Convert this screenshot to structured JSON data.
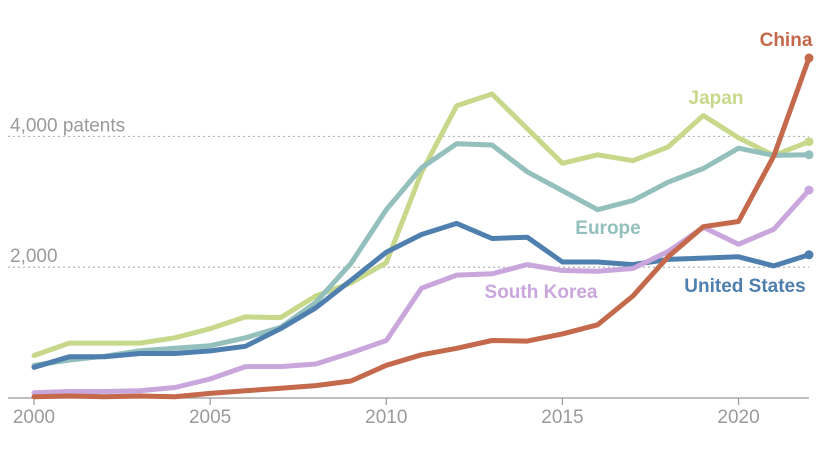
{
  "chart_data": {
    "type": "line",
    "title": "",
    "xlabel": "",
    "ylabel": "",
    "xlim": [
      2000,
      2022
    ],
    "ylim": [
      0,
      5200
    ],
    "x_ticks": [
      2000,
      2005,
      2010,
      2015,
      2020
    ],
    "x_tick_labels": [
      "2000",
      "2005",
      "2010",
      "2015",
      "2020"
    ],
    "y_ticks": [
      2000,
      4000
    ],
    "y_tick_labels": [
      "2,000",
      "4,000 patents"
    ],
    "grid": true,
    "x": [
      2000,
      2001,
      2002,
      2003,
      2004,
      2005,
      2006,
      2007,
      2008,
      2009,
      2010,
      2011,
      2012,
      2013,
      2014,
      2015,
      2016,
      2017,
      2018,
      2019,
      2020,
      2021,
      2022
    ],
    "series": [
      {
        "name": "Japan",
        "color": "#c7d88a",
        "values": [
          650,
          840,
          840,
          840,
          920,
          1060,
          1240,
          1230,
          1560,
          1760,
          2070,
          3450,
          4470,
          4650,
          4120,
          3590,
          3720,
          3630,
          3840,
          4320,
          3980,
          3710,
          3920
        ],
        "end_marker": true
      },
      {
        "name": "Europe",
        "color": "#93bfbc",
        "values": [
          500,
          580,
          640,
          720,
          760,
          800,
          920,
          1080,
          1460,
          2060,
          2880,
          3520,
          3890,
          3870,
          3460,
          3170,
          2880,
          3020,
          3300,
          3510,
          3820,
          3710,
          3720
        ],
        "end_marker": true
      },
      {
        "name": "United States",
        "color": "#4f7fae",
        "values": [
          470,
          630,
          630,
          680,
          680,
          720,
          790,
          1060,
          1380,
          1800,
          2230,
          2500,
          2670,
          2440,
          2460,
          2080,
          2080,
          2040,
          2120,
          2140,
          2160,
          2020,
          2190
        ],
        "end_marker": true
      },
      {
        "name": "South Korea",
        "color": "#c9a6dc",
        "values": [
          80,
          100,
          100,
          110,
          160,
          290,
          480,
          480,
          520,
          690,
          880,
          1680,
          1880,
          1900,
          2040,
          1950,
          1940,
          1980,
          2240,
          2610,
          2350,
          2580,
          3180
        ],
        "end_marker": true
      },
      {
        "name": "China",
        "color": "#c4694b",
        "values": [
          20,
          30,
          20,
          30,
          20,
          70,
          110,
          150,
          190,
          260,
          500,
          660,
          760,
          880,
          870,
          980,
          1120,
          1560,
          2160,
          2620,
          2700,
          3700,
          5200
        ],
        "end_marker": true
      }
    ]
  }
}
